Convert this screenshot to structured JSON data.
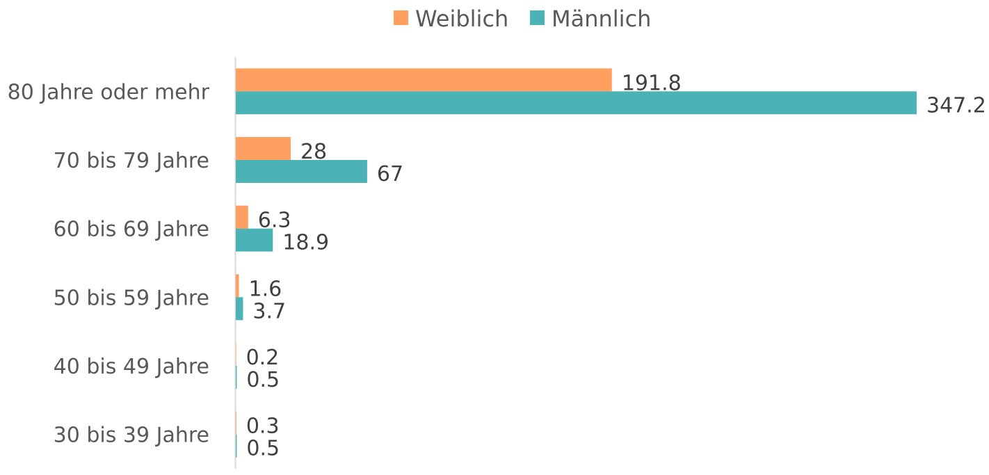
{
  "chart_data": {
    "type": "bar",
    "orientation": "horizontal",
    "categories": [
      "80 Jahre oder mehr",
      "70 bis 79 Jahre",
      "60 bis 69 Jahre",
      "50 bis 59 Jahre",
      "40 bis 49 Jahre",
      "30 bis 39 Jahre"
    ],
    "series": [
      {
        "name": "Weiblich",
        "color": "#FFA061",
        "values": [
          191.8,
          28,
          6.3,
          1.6,
          0.2,
          0.3
        ],
        "labels": [
          "191.8",
          "28",
          "6.3",
          "1.6",
          "0.2",
          "0.3"
        ]
      },
      {
        "name": "Männlich",
        "color": "#4BB3B5",
        "values": [
          347.2,
          67,
          18.9,
          3.7,
          0.5,
          0.5
        ],
        "labels": [
          "347.2",
          "67",
          "18.9",
          "3.7",
          "0.5",
          "0.5"
        ]
      }
    ],
    "xlim": [
      0,
      347.2
    ],
    "grid": false,
    "legend_position": "top-center",
    "data_labels": true
  }
}
